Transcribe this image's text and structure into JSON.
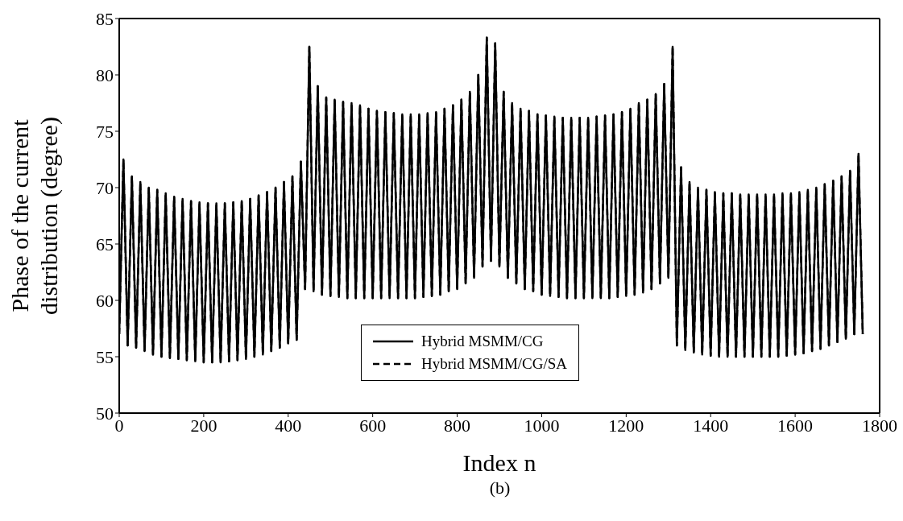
{
  "chart_data": {
    "type": "line",
    "xlabel": "Index n",
    "ylabel": "Phase of the current distribution (degree)",
    "annotations": [
      "(b)"
    ],
    "x": [
      0,
      10,
      20,
      30,
      40,
      50,
      60,
      70,
      80,
      90,
      100,
      110,
      120,
      130,
      140,
      150,
      160,
      170,
      180,
      190,
      200,
      210,
      220,
      230,
      240,
      250,
      260,
      270,
      280,
      290,
      300,
      310,
      320,
      330,
      340,
      350,
      360,
      370,
      380,
      390,
      400,
      410,
      420,
      430,
      440,
      450,
      460,
      470,
      480,
      490,
      500,
      510,
      520,
      530,
      540,
      550,
      560,
      570,
      580,
      590,
      600,
      610,
      620,
      630,
      640,
      650,
      660,
      670,
      680,
      690,
      700,
      710,
      720,
      730,
      740,
      750,
      760,
      770,
      780,
      790,
      800,
      810,
      820,
      830,
      840,
      850,
      860,
      870,
      880,
      890,
      900,
      910,
      920,
      930,
      940,
      950,
      960,
      970,
      980,
      990,
      1000,
      1010,
      1020,
      1030,
      1040,
      1050,
      1060,
      1070,
      1080,
      1090,
      1100,
      1110,
      1120,
      1130,
      1140,
      1150,
      1160,
      1170,
      1180,
      1190,
      1200,
      1210,
      1220,
      1230,
      1240,
      1250,
      1260,
      1270,
      1280,
      1290,
      1300,
      1310,
      1320,
      1330,
      1340,
      1350,
      1360,
      1370,
      1380,
      1390,
      1400,
      1410,
      1420,
      1430,
      1440,
      1450,
      1460,
      1470,
      1480,
      1490,
      1500,
      1510,
      1520,
      1530,
      1540,
      1550,
      1560,
      1570,
      1580,
      1590,
      1600,
      1610,
      1620,
      1630,
      1640,
      1650,
      1660,
      1670,
      1680,
      1690,
      1700,
      1710,
      1720,
      1730,
      1740,
      1750,
      1760
    ],
    "series": [
      {
        "name": "Hybrid MSMM/CG",
        "color": "#000000",
        "line_style": "solid",
        "values": [
          57,
          72.5,
          56,
          71,
          55.8,
          70.5,
          55.5,
          70,
          55.2,
          69.8,
          55,
          69.5,
          54.9,
          69.2,
          54.8,
          69,
          54.7,
          68.8,
          54.6,
          68.7,
          54.5,
          68.6,
          54.5,
          68.6,
          54.5,
          68.6,
          54.6,
          68.7,
          54.7,
          68.8,
          54.8,
          69,
          55,
          69.3,
          55.2,
          69.6,
          55.5,
          70,
          55.8,
          70.5,
          56.2,
          71,
          56.5,
          72.3,
          61,
          82.5,
          60.8,
          79,
          60.5,
          78,
          60.4,
          77.8,
          60.3,
          77.6,
          60.2,
          77.5,
          60.2,
          77.3,
          60.2,
          77,
          60.2,
          76.8,
          60.2,
          76.7,
          60.2,
          76.6,
          60.2,
          76.5,
          60.2,
          76.5,
          60.2,
          76.5,
          60.3,
          76.6,
          60.4,
          76.7,
          60.5,
          77,
          60.8,
          77.3,
          61,
          77.8,
          61.5,
          78.5,
          62,
          80,
          63,
          83.3,
          63.5,
          82.8,
          63,
          78.5,
          62,
          77.5,
          61.5,
          77,
          61,
          76.8,
          60.8,
          76.5,
          60.5,
          76.4,
          60.4,
          76.3,
          60.3,
          76.2,
          60.2,
          76.2,
          60.2,
          76.2,
          60.2,
          76.2,
          60.2,
          76.3,
          60.2,
          76.4,
          60.2,
          76.5,
          60.3,
          76.7,
          60.4,
          77,
          60.5,
          77.5,
          60.7,
          77.8,
          61,
          78.3,
          61.5,
          79.2,
          62,
          82.5,
          56,
          71.8,
          55.6,
          70.5,
          55.4,
          70,
          55.2,
          69.8,
          55.1,
          69.6,
          55,
          69.5,
          55,
          69.5,
          55,
          69.4,
          55,
          69.4,
          55,
          69.4,
          55,
          69.4,
          55,
          69.4,
          55,
          69.5,
          55.1,
          69.5,
          55.2,
          69.6,
          55.3,
          69.8,
          55.5,
          70,
          55.7,
          70.3,
          56,
          70.6,
          56.3,
          71,
          56.6,
          71.5,
          57,
          73,
          57
        ]
      },
      {
        "name": "Hybrid MSMM/CG/SA",
        "color": "#000000",
        "line_style": "dashed",
        "values": [
          57,
          72.5,
          56,
          71,
          55.8,
          70.5,
          55.5,
          70,
          55.2,
          69.8,
          55,
          69.5,
          54.9,
          69.2,
          54.8,
          69,
          54.7,
          68.8,
          54.6,
          68.7,
          54.5,
          68.6,
          54.5,
          68.6,
          54.5,
          68.6,
          54.6,
          68.7,
          54.7,
          68.8,
          54.8,
          69,
          55,
          69.3,
          55.2,
          69.6,
          55.5,
          70,
          55.8,
          70.5,
          56.2,
          71,
          56.5,
          72.3,
          61,
          82.5,
          60.8,
          79,
          60.5,
          78,
          60.4,
          77.8,
          60.3,
          77.6,
          60.2,
          77.5,
          60.2,
          77.3,
          60.2,
          77,
          60.2,
          76.8,
          60.2,
          76.7,
          60.2,
          76.6,
          60.2,
          76.5,
          60.2,
          76.5,
          60.2,
          76.5,
          60.3,
          76.6,
          60.4,
          76.7,
          60.5,
          77,
          60.8,
          77.3,
          61,
          77.8,
          61.5,
          78.5,
          62,
          80,
          63,
          83.3,
          63.5,
          82.8,
          63,
          78.5,
          62,
          77.5,
          61.5,
          77,
          61,
          76.8,
          60.8,
          76.5,
          60.5,
          76.4,
          60.4,
          76.3,
          60.3,
          76.2,
          60.2,
          76.2,
          60.2,
          76.2,
          60.2,
          76.2,
          60.2,
          76.3,
          60.2,
          76.4,
          60.2,
          76.5,
          60.3,
          76.7,
          60.4,
          77,
          60.5,
          77.5,
          60.7,
          77.8,
          61,
          78.3,
          61.5,
          79.2,
          62,
          82.5,
          56,
          71.8,
          55.6,
          70.5,
          55.4,
          70,
          55.2,
          69.8,
          55.1,
          69.6,
          55,
          69.5,
          55,
          69.5,
          55,
          69.4,
          55,
          69.4,
          55,
          69.4,
          55,
          69.4,
          55,
          69.4,
          55,
          69.5,
          55.1,
          69.5,
          55.2,
          69.6,
          55.3,
          69.8,
          55.5,
          70,
          55.7,
          70.3,
          56,
          70.6,
          56.3,
          71,
          56.6,
          71.5,
          57,
          73,
          57
        ]
      }
    ],
    "xlim": [
      0,
      1800
    ],
    "xticks": [
      0,
      200,
      400,
      600,
      800,
      1000,
      1200,
      1400,
      1600,
      1800
    ],
    "ylim": [
      50,
      85
    ],
    "yticks": [
      50,
      55,
      60,
      65,
      70,
      75,
      80,
      85
    ],
    "grid": false,
    "legend": "bottom",
    "marker": "none"
  }
}
